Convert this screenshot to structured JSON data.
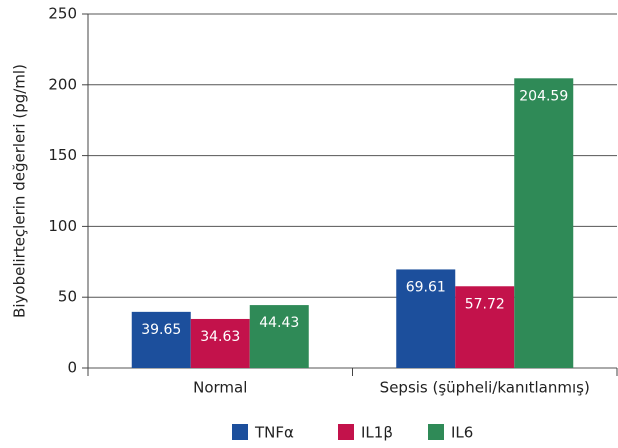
{
  "chart_data": {
    "type": "bar",
    "y_label": "Biyobelirteçlerin değerleri (pg/ml)",
    "categories": [
      "Normal",
      "Sepsis (şüpheli/kanıtlanmış)"
    ],
    "series": [
      {
        "name": "TNFα",
        "color": "#1c4f9c",
        "values": [
          39.65,
          69.61
        ]
      },
      {
        "name": "IL1β",
        "color": "#c3124b",
        "values": [
          34.63,
          57.72
        ]
      },
      {
        "name": "IL6",
        "color": "#2f8a57",
        "values": [
          44.43,
          204.59
        ]
      }
    ],
    "ylim": [
      0,
      250
    ],
    "yticks": [
      0,
      50,
      100,
      150,
      200,
      250
    ],
    "grid": true
  }
}
